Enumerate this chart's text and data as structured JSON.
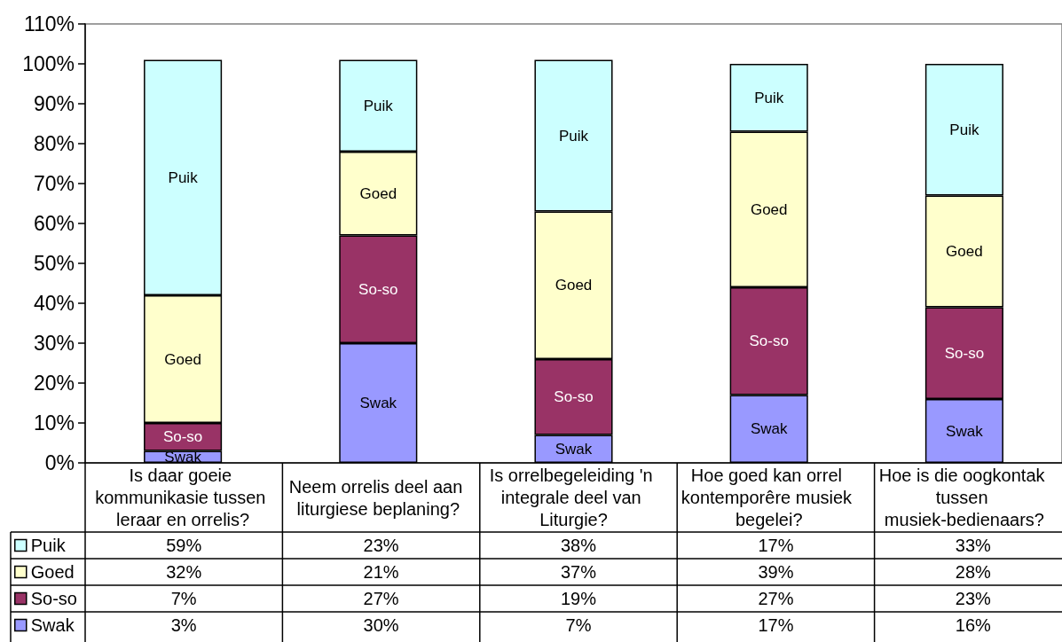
{
  "chart_data": {
    "type": "bar",
    "stacked": true,
    "categories": [
      "Is daar goeie kommunikasie tussen leraar en orrelis?",
      "Neem orrelis deel aan liturgiese beplaning?",
      "Is orrelbegeleiding 'n integrale deel van Liturgie?",
      "Hoe goed kan orrel kontemporêre musiek begelei?",
      "Hoe is die oogkontak tussen musiek-bedienaars?"
    ],
    "series": [
      {
        "name": "Swak",
        "color": "#9999ff",
        "values": [
          3,
          30,
          7,
          17,
          16
        ],
        "value_labels": [
          "3%",
          "30%",
          "7%",
          "17%",
          "16%"
        ]
      },
      {
        "name": "So-so",
        "color": "#993366",
        "values": [
          7,
          27,
          19,
          27,
          23
        ],
        "value_labels": [
          "7%",
          "27%",
          "19%",
          "27%",
          "23%"
        ]
      },
      {
        "name": "Goed",
        "color": "#ffffcc",
        "values": [
          32,
          21,
          37,
          39,
          28
        ],
        "value_labels": [
          "32%",
          "21%",
          "37%",
          "39%",
          "28%"
        ]
      },
      {
        "name": "Puik",
        "color": "#ccffff",
        "values": [
          59,
          23,
          38,
          17,
          33
        ],
        "value_labels": [
          "59%",
          "23%",
          "38%",
          "17%",
          "33%"
        ]
      }
    ],
    "ylim": [
      0,
      110
    ],
    "yticks": [
      {
        "value": 0,
        "label": "0%"
      },
      {
        "value": 10,
        "label": "10%"
      },
      {
        "value": 20,
        "label": "20%"
      },
      {
        "value": 30,
        "label": "30%"
      },
      {
        "value": 40,
        "label": "40%"
      },
      {
        "value": 50,
        "label": "50%"
      },
      {
        "value": 60,
        "label": "60%"
      },
      {
        "value": 70,
        "label": "70%"
      },
      {
        "value": 80,
        "label": "80%"
      },
      {
        "value": 90,
        "label": "90%"
      },
      {
        "value": 100,
        "label": "100%"
      },
      {
        "value": 110,
        "label": "110%"
      }
    ],
    "grid": false,
    "legend": "bottom left"
  }
}
